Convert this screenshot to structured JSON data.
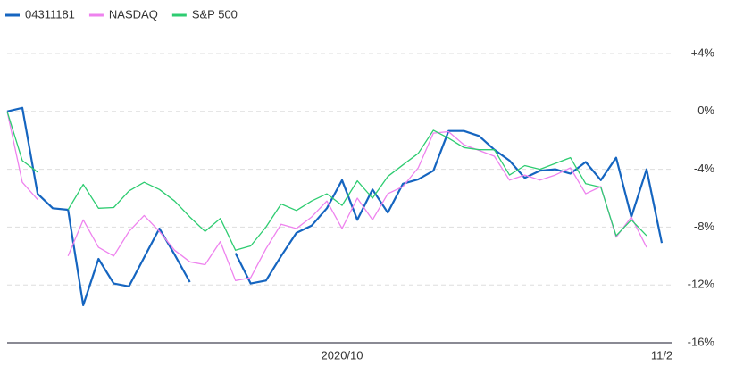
{
  "chart_data": {
    "type": "line",
    "categories": [
      null,
      null,
      null,
      null,
      null,
      null,
      null,
      null,
      null,
      null,
      null,
      null,
      null,
      null,
      null,
      null,
      null,
      null,
      null,
      null,
      null,
      null,
      "2020/10",
      null,
      null,
      null,
      null,
      null,
      null,
      null,
      null,
      null,
      null,
      null,
      null,
      null,
      null,
      null,
      null,
      null,
      null,
      null,
      null,
      "11/2"
    ],
    "series": [
      {
        "name": "04311181",
        "color": "#1565c0",
        "values": [
          0,
          0.25,
          -5.7,
          -6.7,
          -6.8,
          -13.4,
          -10.2,
          -11.9,
          -12.1,
          -10.1,
          -8.1,
          -9.9,
          -11.8,
          null,
          null,
          -9.8,
          -11.9,
          -11.7,
          -10,
          -8.4,
          -7.9,
          -6.7,
          -4.75,
          -7.5,
          -5.4,
          -7,
          -5,
          -4.7,
          -4.1,
          -1.35,
          -1.35,
          -1.7,
          -2.65,
          -3.4,
          -4.6,
          -4.1,
          -4,
          -4.3,
          -3.5,
          -4.75,
          -3.2,
          -7.3,
          -4,
          -9.1
        ]
      },
      {
        "name": "NASDAQ",
        "color": "#ee82ee",
        "values": [
          0,
          -4.9,
          -6.1,
          null,
          -10,
          -7.5,
          -9.4,
          -10,
          -8.3,
          -7.2,
          -8.3,
          -9.6,
          -10.4,
          -10.6,
          -9,
          -11.7,
          -11.5,
          -9.5,
          -7.8,
          -8.1,
          -7.3,
          -6.2,
          -8.1,
          -6,
          -7.5,
          -5.7,
          -5.2,
          -3.9,
          -1.5,
          -1.4,
          -2.3,
          -2.7,
          -3.1,
          -4.75,
          -4.4,
          -4.75,
          -4.4,
          -3.9,
          -5.7,
          -5.2,
          -8.7,
          -7.3,
          -9.4,
          null
        ]
      },
      {
        "name": "S&P 500",
        "color": "#2ecc71",
        "values": [
          0,
          -3.4,
          -4.2,
          null,
          -6.8,
          -5.05,
          -6.7,
          -6.65,
          -5.5,
          -4.9,
          -5.4,
          -6.2,
          -7.3,
          -8.3,
          -7.4,
          -9.6,
          -9.3,
          -8,
          -6.4,
          -6.85,
          -6.2,
          -5.7,
          -6.5,
          -4.8,
          -6,
          -4.5,
          -3.7,
          -2.9,
          -1.3,
          -1.85,
          -2.5,
          -2.65,
          -2.65,
          -4.4,
          -3.75,
          -4,
          -3.6,
          -3.2,
          -5,
          -5.25,
          -8.6,
          -7.5,
          -8.6,
          null
        ]
      }
    ],
    "ylim": [
      -16,
      4
    ],
    "yticks": [
      {
        "value": 4,
        "label": "+4%"
      },
      {
        "value": 0,
        "label": "0%"
      },
      {
        "value": -4,
        "label": "-4%"
      },
      {
        "value": -8,
        "label": "-8%"
      },
      {
        "value": -12,
        "label": "-12%"
      },
      {
        "value": -16,
        "label": "-16%"
      }
    ],
    "grid": true,
    "legend": "top-left"
  }
}
